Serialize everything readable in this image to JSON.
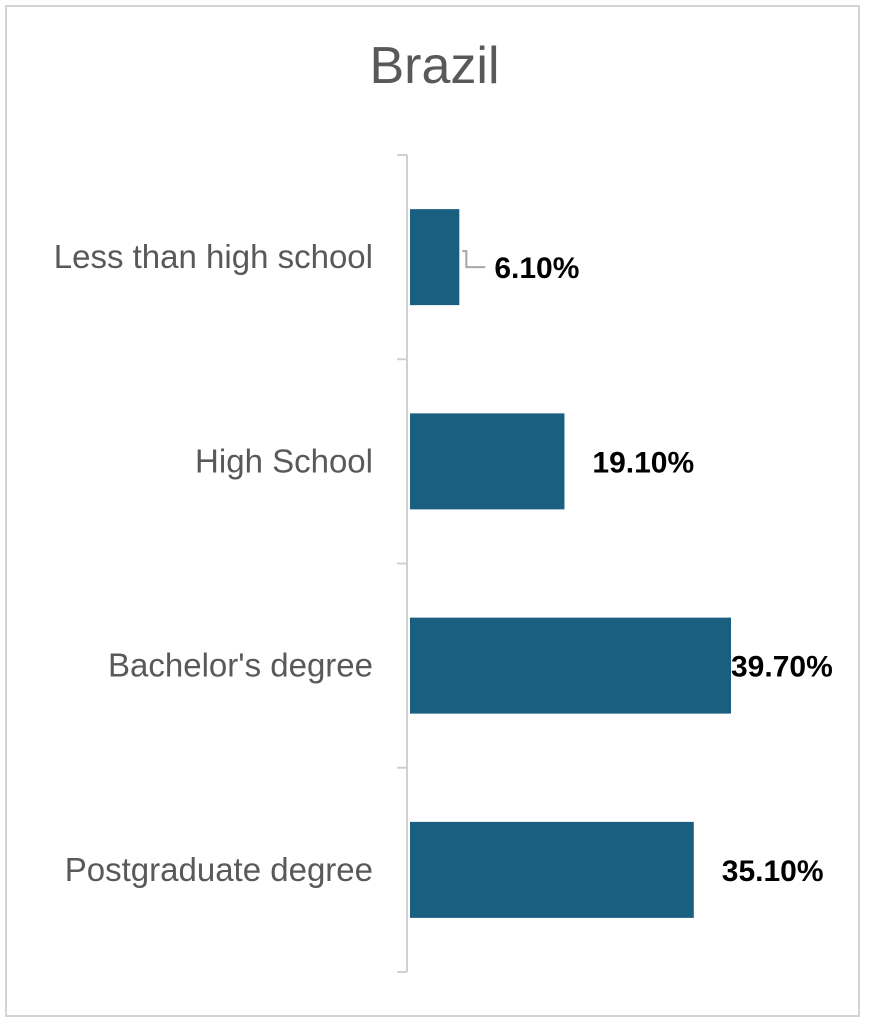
{
  "chart_data": {
    "type": "bar",
    "orientation": "horizontal",
    "title": "Brazil",
    "categories": [
      "Less than high school",
      "High School",
      "Bachelor's degree",
      "Postgraduate degree"
    ],
    "values": [
      6.1,
      19.1,
      39.7,
      35.1
    ],
    "value_labels": [
      "6.10%",
      "19.10%",
      "39.70%",
      "35.10%"
    ],
    "unit": "%",
    "xlim": [
      0,
      40
    ],
    "grid": false,
    "legend": "none",
    "bar_color": "#1a5f80"
  }
}
